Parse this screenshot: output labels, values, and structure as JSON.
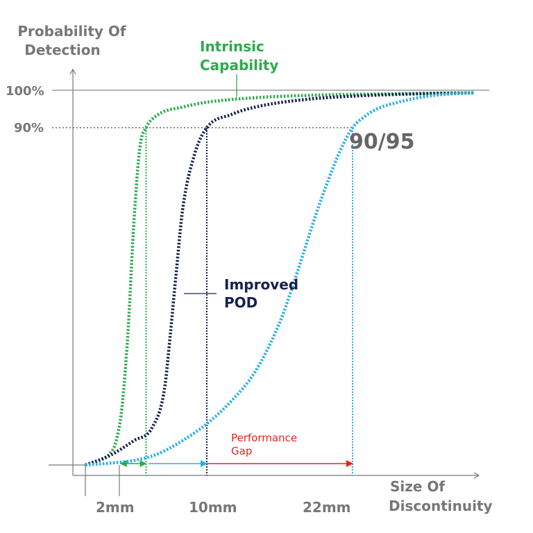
{
  "chart_data": {
    "type": "line",
    "title": "",
    "ylabel": [
      "Probability Of",
      "Detection"
    ],
    "xlabel": [
      "Size Of",
      "Discontinuity"
    ],
    "ylim": [
      0,
      100
    ],
    "xlim": [
      0,
      32
    ],
    "grid": false,
    "y_ticks": [
      {
        "value": 100,
        "label": "100%"
      },
      {
        "value": 90,
        "label": "90%"
      }
    ],
    "x_ticks": [
      {
        "value": 2,
        "label": "2mm"
      },
      {
        "value": 10,
        "label": "10mm"
      },
      {
        "value": 22,
        "label": "22mm"
      }
    ],
    "series": [
      {
        "name": "Intrinsic Capability",
        "label_lines": [
          "Intrinsic",
          "Capability"
        ],
        "color": "#2bab4b",
        "x": [
          0,
          1,
          2,
          2.5,
          3,
          3.5,
          4,
          4.5,
          5,
          6,
          8,
          10,
          14,
          18,
          24,
          32
        ],
        "y": [
          0,
          1,
          3,
          6,
          15,
          35,
          65,
          85,
          90,
          93.5,
          95.5,
          96.8,
          98,
          98.6,
          99,
          99.3
        ]
      },
      {
        "name": "Improved POD",
        "label_lines": [
          "Improved",
          "POD"
        ],
        "color": "#16214f",
        "x": [
          0,
          2,
          4,
          5.5,
          6.5,
          7,
          7.5,
          8,
          9,
          10,
          12,
          14,
          18,
          22,
          28,
          32
        ],
        "y": [
          0,
          2.5,
          6.5,
          10,
          20,
          35,
          52,
          68,
          83,
          90,
          93.5,
          95.5,
          97.5,
          98.4,
          99.1,
          99.3
        ]
      },
      {
        "name": "",
        "color": "#29aee8",
        "x": [
          0,
          2,
          4,
          6,
          8,
          10,
          12,
          14,
          16,
          17,
          18,
          19,
          20,
          21,
          22,
          23,
          24,
          26,
          28,
          30,
          32
        ],
        "y": [
          0,
          0.5,
          1.2,
          3,
          6.5,
          11,
          17,
          25,
          38,
          47,
          57,
          67,
          76,
          84,
          90,
          93,
          95,
          97,
          98.3,
          99,
          99.3
        ]
      }
    ],
    "annotations": {
      "ratio_label": "90/95",
      "gap_label": [
        "Performance",
        "Gap"
      ],
      "gap_color": "#e8231e"
    }
  }
}
